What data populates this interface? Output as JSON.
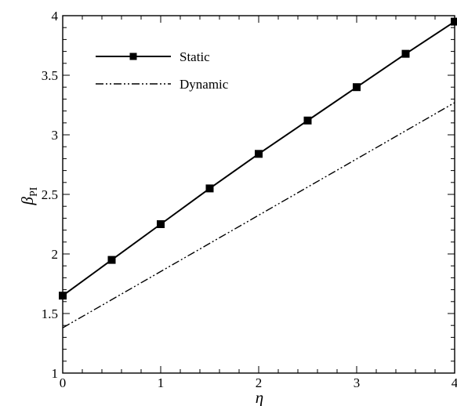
{
  "chart_data": {
    "type": "line",
    "xlabel": "η",
    "ylabel": "β",
    "ylabel_sub": "PI",
    "xlim": [
      0,
      4
    ],
    "ylim": [
      1,
      4
    ],
    "x_ticks": [
      0,
      1,
      2,
      3,
      4
    ],
    "y_ticks": [
      1,
      1.5,
      2,
      2.5,
      3,
      3.5,
      4
    ],
    "x_tick_labels": [
      "0",
      "1",
      "2",
      "3",
      "4"
    ],
    "y_tick_labels": [
      "1",
      "1.5",
      "2",
      "2.5",
      "3",
      "3.5",
      "4"
    ],
    "grid": false,
    "legend_position": "top-left",
    "series": [
      {
        "name": "Static",
        "style": "solid-square-markers",
        "color": "#000000",
        "x": [
          0,
          0.5,
          1,
          1.5,
          2,
          2.5,
          3,
          3.5,
          4
        ],
        "y": [
          1.65,
          1.95,
          2.25,
          2.55,
          2.84,
          3.12,
          3.4,
          3.68,
          3.95
        ]
      },
      {
        "name": "Dynamic",
        "style": "dash-dot-dot",
        "color": "#000000",
        "x": [
          0,
          4
        ],
        "y": [
          1.38,
          3.27
        ]
      }
    ]
  }
}
